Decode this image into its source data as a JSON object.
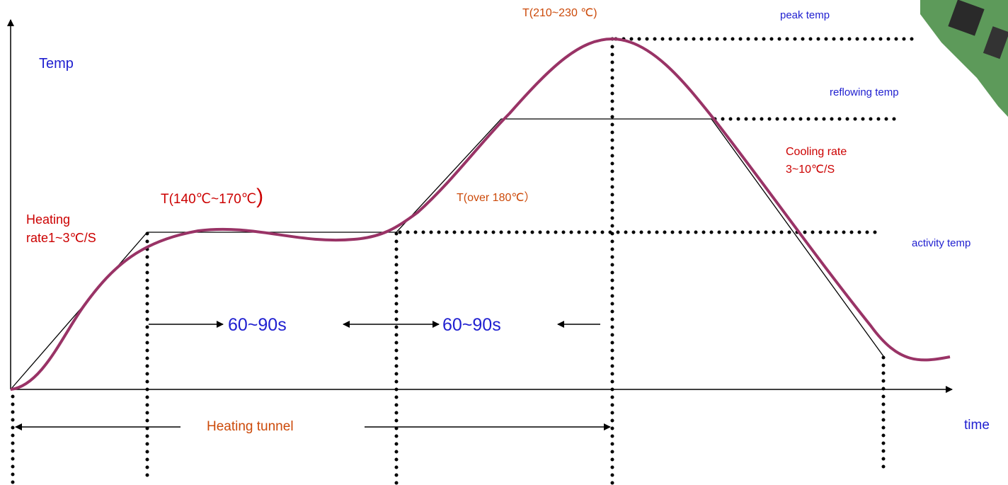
{
  "labels": {
    "temp_axis": "Temp",
    "time_axis": "time",
    "peak_range": "T(210~230 ℃)",
    "peak_temp": "peak temp",
    "reflowing_temp": "reflowing temp",
    "cooling_rate": [
      "Cooling rate",
      "3~10℃/S"
    ],
    "soak_range": "T(140℃~170℃",
    "soak_paren": ")",
    "reflow_range": "T(over 180℃）",
    "heating_rate": [
      "Heating",
      "rate1~3℃/S"
    ],
    "activity_temp": "activity temp",
    "soak_time": "60~90s",
    "reflow_time": "60~90s",
    "heating_tunnel": "Heating tunnel"
  }
}
